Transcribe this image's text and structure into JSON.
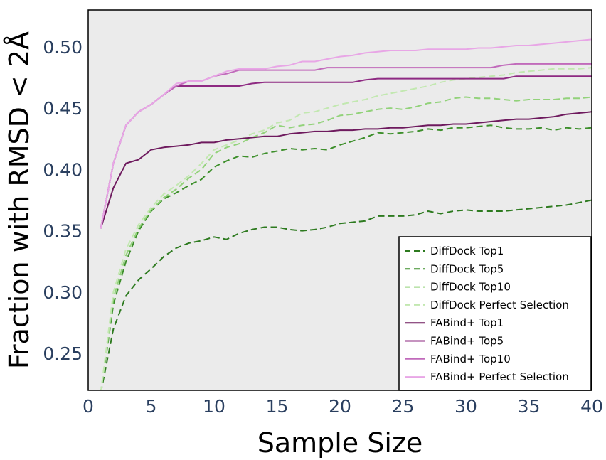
{
  "chart_data": {
    "type": "line",
    "xlabel": "Sample Size",
    "ylabel": "Fraction with RMSD < 2Å",
    "xlim": [
      0,
      40
    ],
    "ylim": [
      0.22,
      0.53
    ],
    "xticks": [
      0,
      5,
      10,
      15,
      20,
      25,
      30,
      35,
      40
    ],
    "yticks": [
      0.25,
      0.3,
      0.35,
      0.4,
      0.45,
      0.5
    ],
    "xtick_labels": [
      "0",
      "5",
      "10",
      "15",
      "20",
      "25",
      "30",
      "35",
      "40"
    ],
    "ytick_labels": [
      "0.25",
      "0.30",
      "0.35",
      "0.40",
      "0.45",
      "0.50"
    ],
    "grid": false,
    "plot_background": "#ebebeb",
    "legend_position": "bottom-right",
    "x": [
      1,
      2,
      3,
      4,
      5,
      6,
      7,
      8,
      9,
      10,
      11,
      12,
      13,
      14,
      15,
      16,
      17,
      18,
      19,
      20,
      21,
      22,
      23,
      24,
      25,
      26,
      27,
      28,
      29,
      30,
      31,
      32,
      33,
      34,
      35,
      36,
      37,
      38,
      39,
      40
    ],
    "series": [
      {
        "name": "DiffDock Top1",
        "color": "#2d7a1f",
        "dash": "dashed",
        "values": [
          0.218,
          0.27,
          0.297,
          0.31,
          0.319,
          0.329,
          0.336,
          0.34,
          0.342,
          0.345,
          0.343,
          0.348,
          0.351,
          0.353,
          0.353,
          0.351,
          0.35,
          0.351,
          0.353,
          0.356,
          0.357,
          0.358,
          0.362,
          0.362,
          0.362,
          0.363,
          0.366,
          0.364,
          0.366,
          0.367,
          0.366,
          0.366,
          0.366,
          0.367,
          0.368,
          0.369,
          0.37,
          0.371,
          0.373,
          0.375
        ]
      },
      {
        "name": "DiffDock Top5",
        "color": "#3d8f2b",
        "dash": "dashed",
        "values": [
          0.218,
          0.29,
          0.325,
          0.35,
          0.366,
          0.376,
          0.381,
          0.387,
          0.392,
          0.402,
          0.407,
          0.411,
          0.41,
          0.413,
          0.415,
          0.417,
          0.416,
          0.417,
          0.416,
          0.42,
          0.423,
          0.426,
          0.43,
          0.429,
          0.43,
          0.431,
          0.433,
          0.432,
          0.434,
          0.434,
          0.435,
          0.436,
          0.434,
          0.433,
          0.433,
          0.434,
          0.432,
          0.434,
          0.433,
          0.434
        ]
      },
      {
        "name": "DiffDock Top10",
        "color": "#92d27a",
        "dash": "dashed",
        "values": [
          0.218,
          0.295,
          0.33,
          0.352,
          0.367,
          0.377,
          0.384,
          0.393,
          0.4,
          0.413,
          0.418,
          0.421,
          0.426,
          0.43,
          0.436,
          0.434,
          0.436,
          0.437,
          0.44,
          0.444,
          0.445,
          0.447,
          0.449,
          0.45,
          0.449,
          0.451,
          0.454,
          0.455,
          0.458,
          0.459,
          0.458,
          0.458,
          0.457,
          0.456,
          0.457,
          0.457,
          0.457,
          0.458,
          0.458,
          0.459
        ]
      },
      {
        "name": "DiffDock Perfect Selection",
        "color": "#c2e8b0",
        "dash": "dashed",
        "values": [
          0.218,
          0.3,
          0.335,
          0.355,
          0.369,
          0.38,
          0.387,
          0.395,
          0.405,
          0.416,
          0.42,
          0.424,
          0.429,
          0.432,
          0.438,
          0.44,
          0.446,
          0.447,
          0.45,
          0.453,
          0.455,
          0.457,
          0.46,
          0.462,
          0.464,
          0.466,
          0.468,
          0.471,
          0.473,
          0.474,
          0.475,
          0.476,
          0.477,
          0.479,
          0.48,
          0.481,
          0.482,
          0.482,
          0.482,
          0.483
        ]
      },
      {
        "name": "FABind+ Top1",
        "color": "#6e1a5e",
        "dash": "solid",
        "values": [
          0.352,
          0.385,
          0.405,
          0.408,
          0.416,
          0.418,
          0.419,
          0.42,
          0.422,
          0.422,
          0.424,
          0.425,
          0.426,
          0.427,
          0.427,
          0.429,
          0.43,
          0.431,
          0.431,
          0.432,
          0.432,
          0.433,
          0.433,
          0.434,
          0.434,
          0.435,
          0.436,
          0.436,
          0.437,
          0.437,
          0.438,
          0.439,
          0.44,
          0.441,
          0.441,
          0.442,
          0.443,
          0.445,
          0.446,
          0.447
        ]
      },
      {
        "name": "FABind+ Top5",
        "color": "#8e2a82",
        "dash": "solid",
        "values": [
          0.352,
          0.405,
          0.436,
          0.447,
          0.453,
          0.461,
          0.468,
          0.468,
          0.468,
          0.468,
          0.468,
          0.468,
          0.47,
          0.471,
          0.471,
          0.471,
          0.471,
          0.471,
          0.471,
          0.471,
          0.471,
          0.473,
          0.474,
          0.474,
          0.474,
          0.474,
          0.474,
          0.474,
          0.474,
          0.474,
          0.474,
          0.474,
          0.474,
          0.476,
          0.476,
          0.476,
          0.476,
          0.476,
          0.476,
          0.476
        ]
      },
      {
        "name": "FABind+ Top10",
        "color": "#c16abb",
        "dash": "solid",
        "values": [
          0.352,
          0.405,
          0.436,
          0.447,
          0.453,
          0.461,
          0.468,
          0.472,
          0.472,
          0.476,
          0.478,
          0.481,
          0.481,
          0.481,
          0.481,
          0.481,
          0.481,
          0.481,
          0.483,
          0.483,
          0.483,
          0.483,
          0.483,
          0.483,
          0.483,
          0.483,
          0.483,
          0.483,
          0.483,
          0.483,
          0.483,
          0.483,
          0.485,
          0.486,
          0.486,
          0.486,
          0.486,
          0.486,
          0.486,
          0.486
        ]
      },
      {
        "name": "FABind+ Perfect Selection",
        "color": "#e8a6e6",
        "dash": "solid",
        "values": [
          0.352,
          0.405,
          0.436,
          0.447,
          0.453,
          0.461,
          0.47,
          0.472,
          0.472,
          0.476,
          0.48,
          0.482,
          0.482,
          0.482,
          0.484,
          0.485,
          0.488,
          0.488,
          0.49,
          0.492,
          0.493,
          0.495,
          0.496,
          0.497,
          0.497,
          0.497,
          0.498,
          0.498,
          0.498,
          0.498,
          0.499,
          0.499,
          0.5,
          0.501,
          0.501,
          0.502,
          0.503,
          0.504,
          0.505,
          0.506
        ]
      }
    ]
  }
}
